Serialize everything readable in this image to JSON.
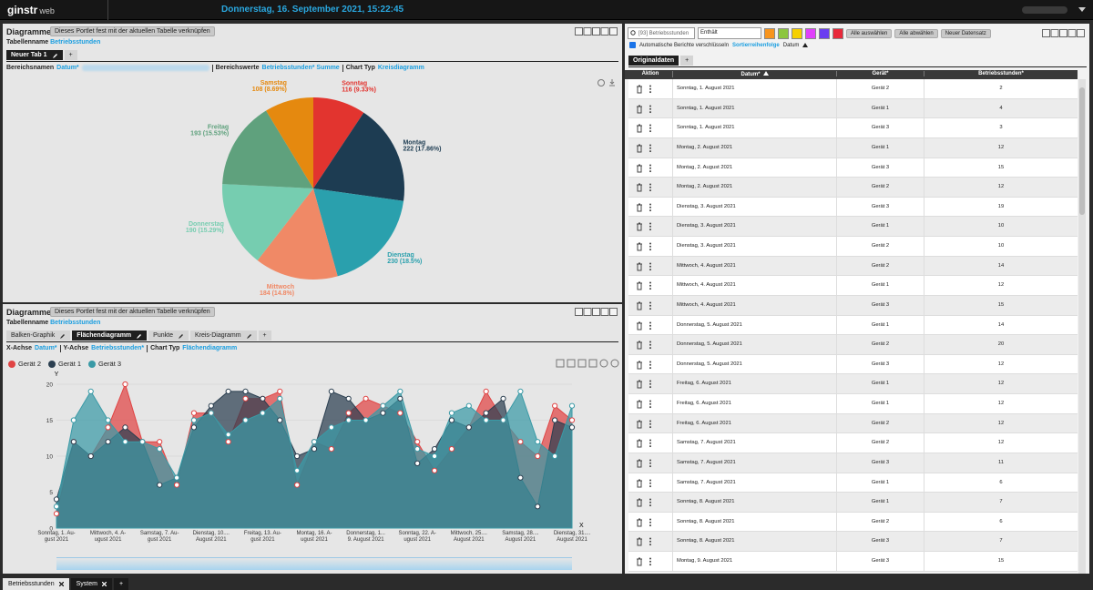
{
  "header": {
    "logo": "ginstr",
    "logo_suffix": "web",
    "datetime": "Donnerstag, 16. September 2021, 15:22:45"
  },
  "portlets": [
    {
      "title": "Diagramme",
      "link_button": "Dieses Portlet fest mit der aktuellen Tabelle verknüpfen",
      "table_label": "Tabellenname",
      "table_name": "Betriebsstunden",
      "tabs": [
        "Neuer Tab 1",
        "+"
      ],
      "active_tab": 0,
      "settings": [
        {
          "label": "Bereichsnamen",
          "value": "Datum*"
        },
        {
          "label": "Bereichswerte",
          "value": "Betriebsstunden* Summe"
        },
        {
          "label": "Chart Typ",
          "value": "Kreisdiagramm"
        }
      ]
    },
    {
      "title": "Diagramme",
      "link_button": "Dieses Portlet fest mit der aktuellen Tabelle verknüpfen",
      "table_label": "Tabellenname",
      "table_name": "Betriebsstunden",
      "tabs": [
        "Balken-Graphik",
        "Flächendiagramm",
        "Punkte",
        "Kreis-Diagramm",
        "+"
      ],
      "active_tab": 1,
      "settings": [
        {
          "label": "X-Achse",
          "value": "Datum*"
        },
        {
          "label": "Y-Achse",
          "value": "Betriebsstunden*"
        },
        {
          "label": "Chart Typ",
          "value": "Flächendiagramm"
        }
      ]
    }
  ],
  "chart_data": [
    {
      "type": "pie",
      "categories": [
        "Sonntag",
        "Montag",
        "Dienstag",
        "Mittwoch",
        "Donnerstag",
        "Freitag",
        "Samstag"
      ],
      "values": [
        116,
        222,
        230,
        184,
        190,
        193,
        108
      ],
      "value_labels": [
        "116 (9.33%)",
        "222 (17.86%)",
        "230 (18.5%)",
        "184 (14.8%)",
        "190 (15.29%)",
        "193 (15.53%)",
        "108 (8.69%)"
      ],
      "colors": [
        "#e2342f",
        "#1d3c52",
        "#2aa0ad",
        "#f08966",
        "#76cdb0",
        "#5fa17d",
        "#e5890f"
      ]
    },
    {
      "type": "area",
      "y_label": "Y",
      "x_label": "X",
      "categories": [
        "Sonntag, 1. Au-\ngust 2021",
        null,
        null,
        "Mittwoch, 4. A-\nugust 2021",
        null,
        null,
        "Samstag, 7. Au-\ngust 2021",
        null,
        null,
        "Dienstag, 10....\nAugust 2021",
        null,
        null,
        "Freitag, 13. Au-\ngust 2021",
        null,
        null,
        "Montag, 16. A-\nugust 2021",
        null,
        null,
        "Donnerstag, 1...\n9. August 2021",
        null,
        null,
        "Sonntag, 22. A-\nugust 2021",
        null,
        null,
        "Mittwoch, 25....\nAugust 2021",
        null,
        null,
        "Samstag, 28....\nAugust 2021",
        null,
        null,
        "Dienstag, 31....\nAugust 2021"
      ],
      "series": [
        {
          "name": "Gerät 2",
          "color": "#e04444",
          "values": [
            2,
            12,
            10,
            14,
            20,
            12,
            12,
            6,
            16,
            16,
            12,
            18,
            18,
            19,
            6,
            12,
            11,
            16,
            18,
            17,
            16,
            12,
            8,
            11,
            14,
            19,
            15,
            12,
            10,
            17,
            15
          ]
        },
        {
          "name": "Gerät 1",
          "color": "#2b3f50",
          "values": [
            4,
            12,
            10,
            12,
            14,
            12,
            6,
            7,
            14,
            17,
            19,
            19,
            18,
            15,
            10,
            11,
            19,
            18,
            15,
            16,
            18,
            9,
            11,
            15,
            14,
            16,
            18,
            7,
            3,
            15,
            14
          ]
        },
        {
          "name": "Gerät 3",
          "color": "#3a9aa6",
          "values": [
            3,
            15,
            19,
            15,
            12,
            12,
            11,
            7,
            15,
            16,
            13,
            15,
            16,
            18,
            8,
            12,
            14,
            15,
            15,
            17,
            19,
            11,
            10,
            16,
            17,
            15,
            15,
            19,
            12,
            10,
            17
          ]
        }
      ],
      "ylim": [
        0,
        20
      ],
      "yticks": [
        0,
        5,
        10,
        15,
        20
      ],
      "grid": true,
      "legend": "top-left"
    }
  ],
  "table": {
    "toolbar": {
      "search_placeholder": "[93] Betriebsstunden",
      "operator": "Enthält",
      "swatches": [
        "#f7941d",
        "#8cc63f",
        "#f5d000",
        "#e040fb",
        "#6a3df0",
        "#e8283a"
      ],
      "buttons": [
        "Alle auswählen",
        "Alle abwählen",
        "Neuer Datensatz"
      ]
    },
    "options": {
      "checkbox": "Automatische Berichte verschlüsseln",
      "sort_label": "Sortierreihenfolge",
      "sort_value": "Datum"
    },
    "tabs": [
      "Originaldaten",
      "+"
    ],
    "columns": [
      "Aktion",
      "Datum*",
      "Gerät*",
      "Betriebsstunden*"
    ],
    "rows": [
      [
        "Sonntag, 1. August 2021",
        "Gerät 2",
        2
      ],
      [
        "Sonntag, 1. August 2021",
        "Gerät 1",
        4
      ],
      [
        "Sonntag, 1. August 2021",
        "Gerät 3",
        3
      ],
      [
        "Montag, 2. August 2021",
        "Gerät 1",
        12
      ],
      [
        "Montag, 2. August 2021",
        "Gerät 3",
        15
      ],
      [
        "Montag, 2. August 2021",
        "Gerät 2",
        12
      ],
      [
        "Dienstag, 3. August 2021",
        "Gerät 3",
        19
      ],
      [
        "Dienstag, 3. August 2021",
        "Gerät 1",
        10
      ],
      [
        "Dienstag, 3. August 2021",
        "Gerät 2",
        10
      ],
      [
        "Mittwoch, 4. August 2021",
        "Gerät 2",
        14
      ],
      [
        "Mittwoch, 4. August 2021",
        "Gerät 1",
        12
      ],
      [
        "Mittwoch, 4. August 2021",
        "Gerät 3",
        15
      ],
      [
        "Donnerstag, 5. August 2021",
        "Gerät 1",
        14
      ],
      [
        "Donnerstag, 5. August 2021",
        "Gerät 2",
        20
      ],
      [
        "Donnerstag, 5. August 2021",
        "Gerät 3",
        12
      ],
      [
        "Freitag, 6. August 2021",
        "Gerät 1",
        12
      ],
      [
        "Freitag, 6. August 2021",
        "Gerät 1",
        12
      ],
      [
        "Freitag, 6. August 2021",
        "Gerät 2",
        12
      ],
      [
        "Samstag, 7. August 2021",
        "Gerät 2",
        12
      ],
      [
        "Samstag, 7. August 2021",
        "Gerät 3",
        11
      ],
      [
        "Samstag, 7. August 2021",
        "Gerät 1",
        6
      ],
      [
        "Sonntag, 8. August 2021",
        "Gerät 1",
        7
      ],
      [
        "Sonntag, 8. August 2021",
        "Gerät 2",
        6
      ],
      [
        "Sonntag, 8. August 2021",
        "Gerät 3",
        7
      ],
      [
        "Montag, 9. August 2021",
        "Gerät 3",
        15
      ]
    ]
  },
  "footer_tabs": [
    "Betriebsstunden",
    "System",
    "+"
  ]
}
